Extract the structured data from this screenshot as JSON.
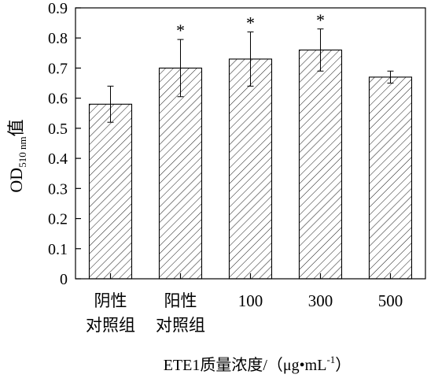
{
  "chart_data": {
    "type": "bar",
    "categories": [
      [
        "阴性",
        "对照组"
      ],
      [
        "阳性",
        "对照组"
      ],
      [
        "100"
      ],
      [
        "300"
      ],
      [
        "500"
      ]
    ],
    "values": [
      0.58,
      0.7,
      0.73,
      0.76,
      0.67
    ],
    "errors": [
      0.06,
      0.095,
      0.09,
      0.07,
      0.02
    ],
    "significance": [
      "",
      "*",
      "*",
      "*",
      ""
    ],
    "ylim": [
      0,
      0.9
    ],
    "yticks": [
      "0",
      "0.1",
      "0.2",
      "0.3",
      "0.4",
      "0.5",
      "0.6",
      "0.7",
      "0.8",
      "0.9"
    ],
    "ylabel": {
      "main": "OD",
      "sub": "510 nm",
      "suffix": "值"
    },
    "xlabel": {
      "main": "ETE1质量浓度/（μg•mL",
      "sup": "-1",
      "end": "）"
    },
    "bar_fill": "diagonal-hatch",
    "colors": {
      "bar_stroke": "#000000",
      "hatch": "#000000",
      "background": "#ffffff"
    },
    "grid": false
  }
}
